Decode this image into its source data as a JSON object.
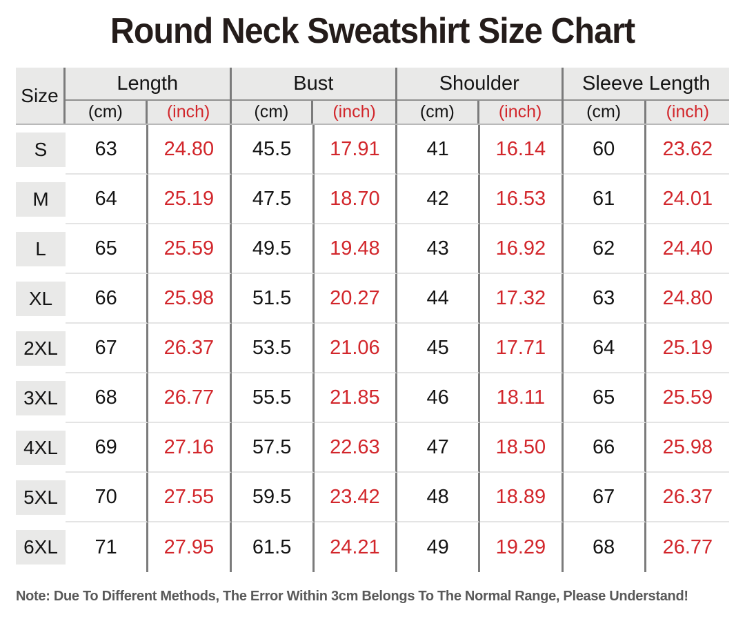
{
  "title": "Round Neck Sweatshirt Size Chart",
  "note": "Note: Due To Different Methods, The Error Within 3cm Belongs To The Normal Range, Please Understand!",
  "colors": {
    "accent-red": "#d2262b",
    "title-color": "#241c1a",
    "text-dark": "#141414",
    "note-color": "#595959",
    "header-bg": "#e9e9e8",
    "chip-bg": "#e9e9e8",
    "line-dark": "#7b7b7b",
    "line-under": "#8f8f8f",
    "line-mid": "#b9b9b9",
    "line-light": "#e4e4e4"
  },
  "table": {
    "size_header": "Size",
    "unit_cm": "(cm)",
    "unit_inch": "(inch)",
    "groups": [
      {
        "label": "Length"
      },
      {
        "label": "Bust"
      },
      {
        "label": "Shoulder"
      },
      {
        "label": "Sleeve Length"
      }
    ],
    "columns": [
      "length-cm",
      "length-inch",
      "bust-cm",
      "bust-inch",
      "shoulder-cm",
      "shoulder-inch",
      "sleeve-length-cm",
      "sleeve-length-inch"
    ],
    "rows": [
      {
        "size": "S",
        "values": [
          "63",
          "24.80",
          "45.5",
          "17.91",
          "41",
          "16.14",
          "60",
          "23.62"
        ]
      },
      {
        "size": "M",
        "values": [
          "64",
          "25.19",
          "47.5",
          "18.70",
          "42",
          "16.53",
          "61",
          "24.01"
        ]
      },
      {
        "size": "L",
        "values": [
          "65",
          "25.59",
          "49.5",
          "19.48",
          "43",
          "16.92",
          "62",
          "24.40"
        ]
      },
      {
        "size": "XL",
        "values": [
          "66",
          "25.98",
          "51.5",
          "20.27",
          "44",
          "17.32",
          "63",
          "24.80"
        ]
      },
      {
        "size": "2XL",
        "values": [
          "67",
          "26.37",
          "53.5",
          "21.06",
          "45",
          "17.71",
          "64",
          "25.19"
        ]
      },
      {
        "size": "3XL",
        "values": [
          "68",
          "26.77",
          "55.5",
          "21.85",
          "46",
          "18.11",
          "65",
          "25.59"
        ]
      },
      {
        "size": "4XL",
        "values": [
          "69",
          "27.16",
          "57.5",
          "22.63",
          "47",
          "18.50",
          "66",
          "25.98"
        ]
      },
      {
        "size": "5XL",
        "values": [
          "70",
          "27.55",
          "59.5",
          "23.42",
          "48",
          "18.89",
          "67",
          "26.37"
        ]
      },
      {
        "size": "6XL",
        "values": [
          "71",
          "27.95",
          "61.5",
          "24.21",
          "49",
          "19.29",
          "68",
          "26.77"
        ]
      }
    ]
  },
  "chart_data": {
    "type": "table",
    "title": "Round Neck Sweatshirt Size Chart",
    "column_groups": [
      "Length",
      "Bust",
      "Shoulder",
      "Sleeve Length"
    ],
    "columns": [
      "Size",
      "Length (cm)",
      "Length (inch)",
      "Bust (cm)",
      "Bust (inch)",
      "Shoulder (cm)",
      "Shoulder (inch)",
      "Sleeve Length (cm)",
      "Sleeve Length (inch)"
    ],
    "rows": [
      [
        "S",
        63,
        24.8,
        45.5,
        17.91,
        41,
        16.14,
        60,
        23.62
      ],
      [
        "M",
        64,
        25.19,
        47.5,
        18.7,
        42,
        16.53,
        61,
        24.01
      ],
      [
        "L",
        65,
        25.59,
        49.5,
        19.48,
        43,
        16.92,
        62,
        24.4
      ],
      [
        "XL",
        66,
        25.98,
        51.5,
        20.27,
        44,
        17.32,
        63,
        24.8
      ],
      [
        "2XL",
        67,
        26.37,
        53.5,
        21.06,
        45,
        17.71,
        64,
        25.19
      ],
      [
        "3XL",
        68,
        26.77,
        55.5,
        21.85,
        46,
        18.11,
        65,
        25.59
      ],
      [
        "4XL",
        69,
        27.16,
        57.5,
        22.63,
        47,
        18.5,
        66,
        25.98
      ],
      [
        "5XL",
        70,
        27.55,
        59.5,
        23.42,
        48,
        18.89,
        67,
        26.37
      ],
      [
        "6XL",
        71,
        27.95,
        61.5,
        24.21,
        49,
        19.29,
        68,
        26.77
      ]
    ],
    "inch_values_color": "#d2262b",
    "note": "Note: Due To Different Methods, The Error Within 3cm Belongs To The Normal Range, Please Understand!"
  }
}
